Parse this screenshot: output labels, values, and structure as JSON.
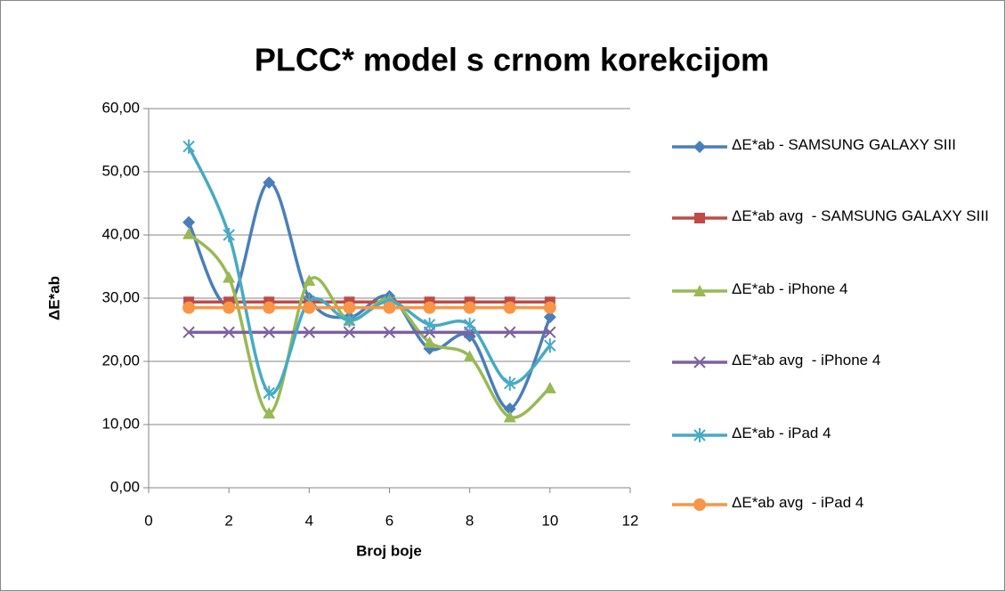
{
  "chart_data": {
    "type": "scatter-smooth",
    "title": "PLCC* model s crnom korekcijom",
    "x_label": "Broj boje",
    "y_label": "ΔE*ab",
    "xlim": [
      0,
      12
    ],
    "xticks": [
      0,
      2,
      4,
      6,
      8,
      10,
      12
    ],
    "ylim": [
      0,
      60
    ],
    "yticks": [
      {
        "value": 0,
        "label": "0,00"
      },
      {
        "value": 10,
        "label": "10,00"
      },
      {
        "value": 20,
        "label": "20,00"
      },
      {
        "value": 30,
        "label": "30,00"
      },
      {
        "value": 40,
        "label": "40,00"
      },
      {
        "value": 50,
        "label": "50,00"
      },
      {
        "value": 60,
        "label": "60,00"
      }
    ],
    "grid": true,
    "x": [
      1,
      2,
      3,
      4,
      5,
      6,
      7,
      8,
      9,
      10
    ],
    "series": [
      {
        "name": "ΔE*ab - SAMSUNG GALAXY SIII",
        "color": "#4a7ebb",
        "marker": "diamond",
        "values": [
          42,
          29,
          48.3,
          30,
          27,
          30.3,
          22,
          24,
          12.5,
          27
        ]
      },
      {
        "name": "ΔE*ab avg  - SAMSUNG GALAXY SIII",
        "color": "#be4b48",
        "marker": "square",
        "values": [
          29.4,
          29.4,
          29.4,
          29.4,
          29.4,
          29.4,
          29.4,
          29.4,
          29.4,
          29.4
        ]
      },
      {
        "name": "ΔE*ab - iPhone 4",
        "color": "#98b954",
        "marker": "triangle",
        "values": [
          40.2,
          33.3,
          11.8,
          32.8,
          26.5,
          29.8,
          23,
          20.8,
          11.2,
          15.8
        ]
      },
      {
        "name": "ΔE*ab avg  - iPhone 4",
        "color": "#7d60a0",
        "marker": "x",
        "values": [
          24.6,
          24.6,
          24.6,
          24.6,
          24.6,
          24.6,
          24.6,
          24.6,
          24.6,
          24.6
        ]
      },
      {
        "name": "ΔE*ab - iPad 4",
        "color": "#46aac5",
        "marker": "star",
        "values": [
          54,
          40,
          15,
          29.5,
          26.5,
          29.5,
          25.8,
          25.8,
          16.5,
          22.5
        ]
      },
      {
        "name": "ΔE*ab avg  - iPad 4",
        "color": "#f79646",
        "marker": "circle",
        "values": [
          28.5,
          28.5,
          28.5,
          28.5,
          28.5,
          28.5,
          28.5,
          28.5,
          28.5,
          28.5
        ]
      }
    ]
  }
}
